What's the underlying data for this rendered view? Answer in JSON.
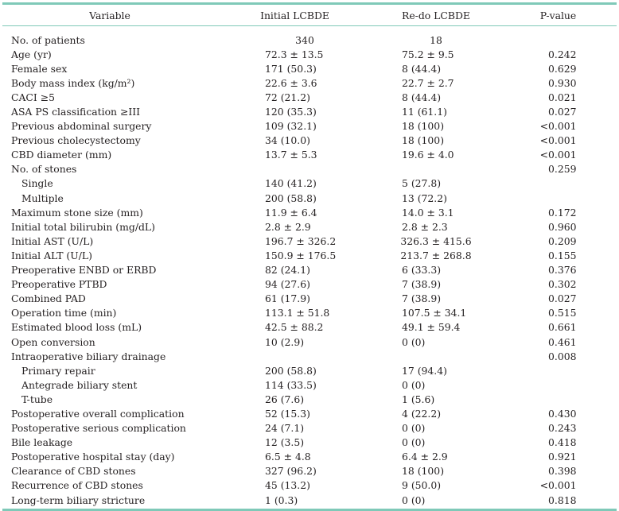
{
  "table": {
    "headers": {
      "variable": "Variable",
      "initial": "Initial LCBDE",
      "redo": "Re-do LCBDE",
      "pvalue": "P-value"
    },
    "rows": [
      {
        "variable": "No. of patients",
        "initial": "340",
        "redo": "18",
        "pvalue": "",
        "sub": false,
        "center": true
      },
      {
        "variable": "Age (yr)",
        "initial": "72.3 ± 13.5",
        "redo": "75.2 ± 9.5",
        "pvalue": "0.242",
        "sub": false
      },
      {
        "variable": "Female sex",
        "initial": "171 (50.3)",
        "redo": "8 (44.4)",
        "pvalue": "0.629",
        "sub": false
      },
      {
        "variable": "Body mass index (kg/m²)",
        "initial": "22.6 ± 3.6",
        "redo": "22.7 ± 2.7",
        "pvalue": "0.930",
        "sub": false
      },
      {
        "variable": "CACI ≥5",
        "initial": "72 (21.2)",
        "redo": "8 (44.4)",
        "pvalue": "0.021",
        "sub": false
      },
      {
        "variable": "ASA PS classification ≥III",
        "initial": "120 (35.3)",
        "redo": "11 (61.1)",
        "pvalue": "0.027",
        "sub": false
      },
      {
        "variable": "Previous abdominal surgery",
        "initial": "109 (32.1)",
        "redo": "18 (100)",
        "pvalue": "<0.001",
        "sub": false
      },
      {
        "variable": "Previous cholecystectomy",
        "initial": "34 (10.0)",
        "redo": "18 (100)",
        "pvalue": "<0.001",
        "sub": false
      },
      {
        "variable": "CBD diameter (mm)",
        "initial": "13.7 ± 5.3",
        "redo": "19.6 ± 4.0",
        "pvalue": "<0.001",
        "sub": false
      },
      {
        "variable": "No. of stones",
        "initial": "",
        "redo": "",
        "pvalue": "0.259",
        "sub": false
      },
      {
        "variable": "Single",
        "initial": "140 (41.2)",
        "redo": "5 (27.8)",
        "pvalue": "",
        "sub": true
      },
      {
        "variable": "Multiple",
        "initial": "200 (58.8)",
        "redo": "13 (72.2)",
        "pvalue": "",
        "sub": true
      },
      {
        "variable": "Maximum stone size (mm)",
        "initial": "11.9 ± 6.4",
        "redo": "14.0 ± 3.1",
        "pvalue": "0.172",
        "sub": false
      },
      {
        "variable": "Initial total bilirubin (mg/dL)",
        "initial": "2.8 ± 2.9",
        "redo": "2.8 ± 2.3",
        "pvalue": "0.960",
        "sub": false
      },
      {
        "variable": "Initial AST (U/L)",
        "initial": "196.7 ± 326.2",
        "redo": "326.3 ± 415.6",
        "pvalue": "0.209",
        "sub": false
      },
      {
        "variable": "Initial ALT (U/L)",
        "initial": "150.9 ± 176.5",
        "redo": "213.7 ± 268.8",
        "pvalue": "0.155",
        "sub": false
      },
      {
        "variable": "Preoperative ENBD or ERBD",
        "initial": "82 (24.1)",
        "redo": "6 (33.3)",
        "pvalue": "0.376",
        "sub": false
      },
      {
        "variable": "Preoperative PTBD",
        "initial": "94 (27.6)",
        "redo": "7 (38.9)",
        "pvalue": "0.302",
        "sub": false
      },
      {
        "variable": "Combined PAD",
        "initial": "61 (17.9)",
        "redo": "7 (38.9)",
        "pvalue": "0.027",
        "sub": false
      },
      {
        "variable": "Operation time (min)",
        "initial": "113.1 ± 51.8",
        "redo": "107.5 ± 34.1",
        "pvalue": "0.515",
        "sub": false
      },
      {
        "variable": "Estimated blood loss (mL)",
        "initial": "42.5 ± 88.2",
        "redo": "49.1 ± 59.4",
        "pvalue": "0.661",
        "sub": false
      },
      {
        "variable": "Open conversion",
        "initial": "10 (2.9)",
        "redo": "0 (0)",
        "pvalue": "0.461",
        "sub": false
      },
      {
        "variable": "Intraoperative biliary drainage",
        "initial": "",
        "redo": "",
        "pvalue": "0.008",
        "sub": false
      },
      {
        "variable": "Primary repair",
        "initial": "200 (58.8)",
        "redo": "17 (94.4)",
        "pvalue": "",
        "sub": true
      },
      {
        "variable": "Antegrade biliary stent",
        "initial": "114 (33.5)",
        "redo": "0 (0)",
        "pvalue": "",
        "sub": true
      },
      {
        "variable": "T-tube",
        "initial": "26 (7.6)",
        "redo": "1 (5.6)",
        "pvalue": "",
        "sub": true
      },
      {
        "variable": "Postoperative overall complication",
        "initial": "52 (15.3)",
        "redo": "4 (22.2)",
        "pvalue": "0.430",
        "sub": false
      },
      {
        "variable": "Postoperative serious complication",
        "initial": "24 (7.1)",
        "redo": "0 (0)",
        "pvalue": "0.243",
        "sub": false
      },
      {
        "variable": "Bile leakage",
        "initial": "12 (3.5)",
        "redo": "0 (0)",
        "pvalue": "0.418",
        "sub": false
      },
      {
        "variable": "Postoperative hospital stay (day)",
        "initial": "6.5 ± 4.8",
        "redo": "6.4 ± 2.9",
        "pvalue": "0.921",
        "sub": false
      },
      {
        "variable": "Clearance of CBD stones",
        "initial": "327 (96.2)",
        "redo": "18 (100)",
        "pvalue": "0.398",
        "sub": false
      },
      {
        "variable": "Recurrence of CBD stones",
        "initial": "45 (13.2)",
        "redo": "9 (50.0)",
        "pvalue": "<0.001",
        "sub": false
      },
      {
        "variable": "Long-term biliary stricture",
        "initial": "1 (0.3)",
        "redo": "0 (0)",
        "pvalue": "0.818",
        "sub": false
      }
    ]
  }
}
